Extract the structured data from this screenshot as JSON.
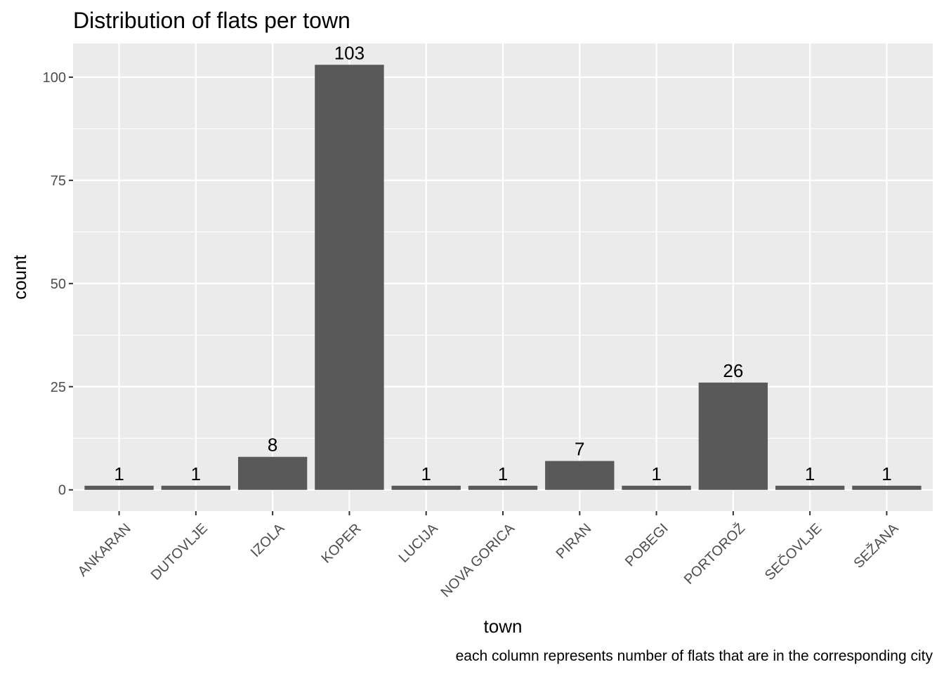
{
  "chart_data": {
    "type": "bar",
    "title": "Distribution of flats per town",
    "xlabel": "town",
    "ylabel": "count",
    "caption": "each column represents number of flats that are in the corresponding city",
    "categories": [
      "ANKARAN",
      "DUTOVLJE",
      "IZOLA",
      "KOPER",
      "LUCIJA",
      "NOVA GORICA",
      "PIRAN",
      "POBEGI",
      "PORTOROŽ",
      "SEČOVLJE",
      "SEŽANA"
    ],
    "values": [
      1,
      1,
      8,
      103,
      1,
      1,
      7,
      1,
      26,
      1,
      1
    ],
    "y_ticks": [
      0,
      25,
      50,
      75,
      100
    ],
    "ylim": [
      -5.15,
      108.15
    ],
    "grid": true,
    "legend": "none",
    "colors": {
      "bar": "#595959",
      "panel": "#ebebeb",
      "grid": "#ffffff"
    }
  }
}
